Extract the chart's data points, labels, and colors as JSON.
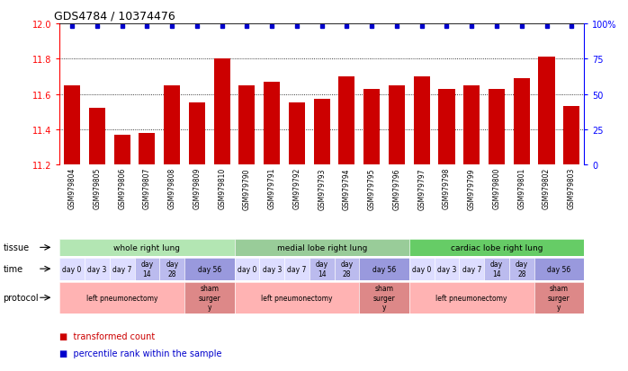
{
  "title": "GDS4784 / 10374476",
  "samples": [
    "GSM979804",
    "GSM979805",
    "GSM979806",
    "GSM979807",
    "GSM979808",
    "GSM979809",
    "GSM979810",
    "GSM979790",
    "GSM979791",
    "GSM979792",
    "GSM979793",
    "GSM979794",
    "GSM979795",
    "GSM979796",
    "GSM979797",
    "GSM979798",
    "GSM979799",
    "GSM979800",
    "GSM979801",
    "GSM979802",
    "GSM979803"
  ],
  "bar_values": [
    11.65,
    11.52,
    11.37,
    11.38,
    11.65,
    11.55,
    11.8,
    11.65,
    11.67,
    11.55,
    11.57,
    11.7,
    11.63,
    11.65,
    11.7,
    11.63,
    11.65,
    11.63,
    11.69,
    11.81,
    11.53
  ],
  "bar_color": "#cc0000",
  "dot_color": "#0000cc",
  "ylim": [
    11.2,
    12.0
  ],
  "yticks_left": [
    11.2,
    11.4,
    11.6,
    11.8,
    12.0
  ],
  "yticks_right_vals": [
    0,
    25,
    50,
    75,
    100
  ],
  "tissue_groups": [
    {
      "label": "whole right lung",
      "start": 0,
      "end": 7,
      "color": "#b3e6b3"
    },
    {
      "label": "medial lobe right lung",
      "start": 7,
      "end": 14,
      "color": "#99cc99"
    },
    {
      "label": "cardiac lobe right lung",
      "start": 14,
      "end": 21,
      "color": "#66cc66"
    }
  ],
  "time_spans": [
    {
      "label": "day 0",
      "col": 0,
      "span": 1,
      "color": "#ddddff"
    },
    {
      "label": "day 3",
      "col": 1,
      "span": 1,
      "color": "#ddddff"
    },
    {
      "label": "day 7",
      "col": 2,
      "span": 1,
      "color": "#ddddff"
    },
    {
      "label": "day\n14",
      "col": 3,
      "span": 1,
      "color": "#bbbbee"
    },
    {
      "label": "day\n28",
      "col": 4,
      "span": 1,
      "color": "#bbbbee"
    },
    {
      "label": "day 56",
      "col": 5,
      "span": 2,
      "color": "#9999dd"
    },
    {
      "label": "day 0",
      "col": 7,
      "span": 1,
      "color": "#ddddff"
    },
    {
      "label": "day 3",
      "col": 8,
      "span": 1,
      "color": "#ddddff"
    },
    {
      "label": "day 7",
      "col": 9,
      "span": 1,
      "color": "#ddddff"
    },
    {
      "label": "day\n14",
      "col": 10,
      "span": 1,
      "color": "#bbbbee"
    },
    {
      "label": "day\n28",
      "col": 11,
      "span": 1,
      "color": "#bbbbee"
    },
    {
      "label": "day 56",
      "col": 12,
      "span": 2,
      "color": "#9999dd"
    },
    {
      "label": "day 0",
      "col": 14,
      "span": 1,
      "color": "#ddddff"
    },
    {
      "label": "day 3",
      "col": 15,
      "span": 1,
      "color": "#ddddff"
    },
    {
      "label": "day 7",
      "col": 16,
      "span": 1,
      "color": "#ddddff"
    },
    {
      "label": "day\n14",
      "col": 17,
      "span": 1,
      "color": "#bbbbee"
    },
    {
      "label": "day\n28",
      "col": 18,
      "span": 1,
      "color": "#bbbbee"
    },
    {
      "label": "day 56",
      "col": 19,
      "span": 2,
      "color": "#9999dd"
    }
  ],
  "protocol_spans": [
    {
      "label": "left pneumonectomy",
      "start": 0,
      "end": 5,
      "color": "#ffb3b3"
    },
    {
      "label": "sham\nsurger\ny",
      "start": 5,
      "end": 7,
      "color": "#dd8888"
    },
    {
      "label": "left pneumonectomy",
      "start": 7,
      "end": 12,
      "color": "#ffb3b3"
    },
    {
      "label": "sham\nsurger\ny",
      "start": 12,
      "end": 14,
      "color": "#dd8888"
    },
    {
      "label": "left pneumonectomy",
      "start": 14,
      "end": 19,
      "color": "#ffb3b3"
    },
    {
      "label": "sham\nsurger\ny",
      "start": 19,
      "end": 21,
      "color": "#dd8888"
    }
  ],
  "row_labels": [
    "tissue",
    "time",
    "protocol"
  ],
  "legend_items": [
    {
      "color": "#cc0000",
      "label": "transformed count"
    },
    {
      "color": "#0000cc",
      "label": "percentile rank within the sample"
    }
  ],
  "background_color": "#ffffff"
}
